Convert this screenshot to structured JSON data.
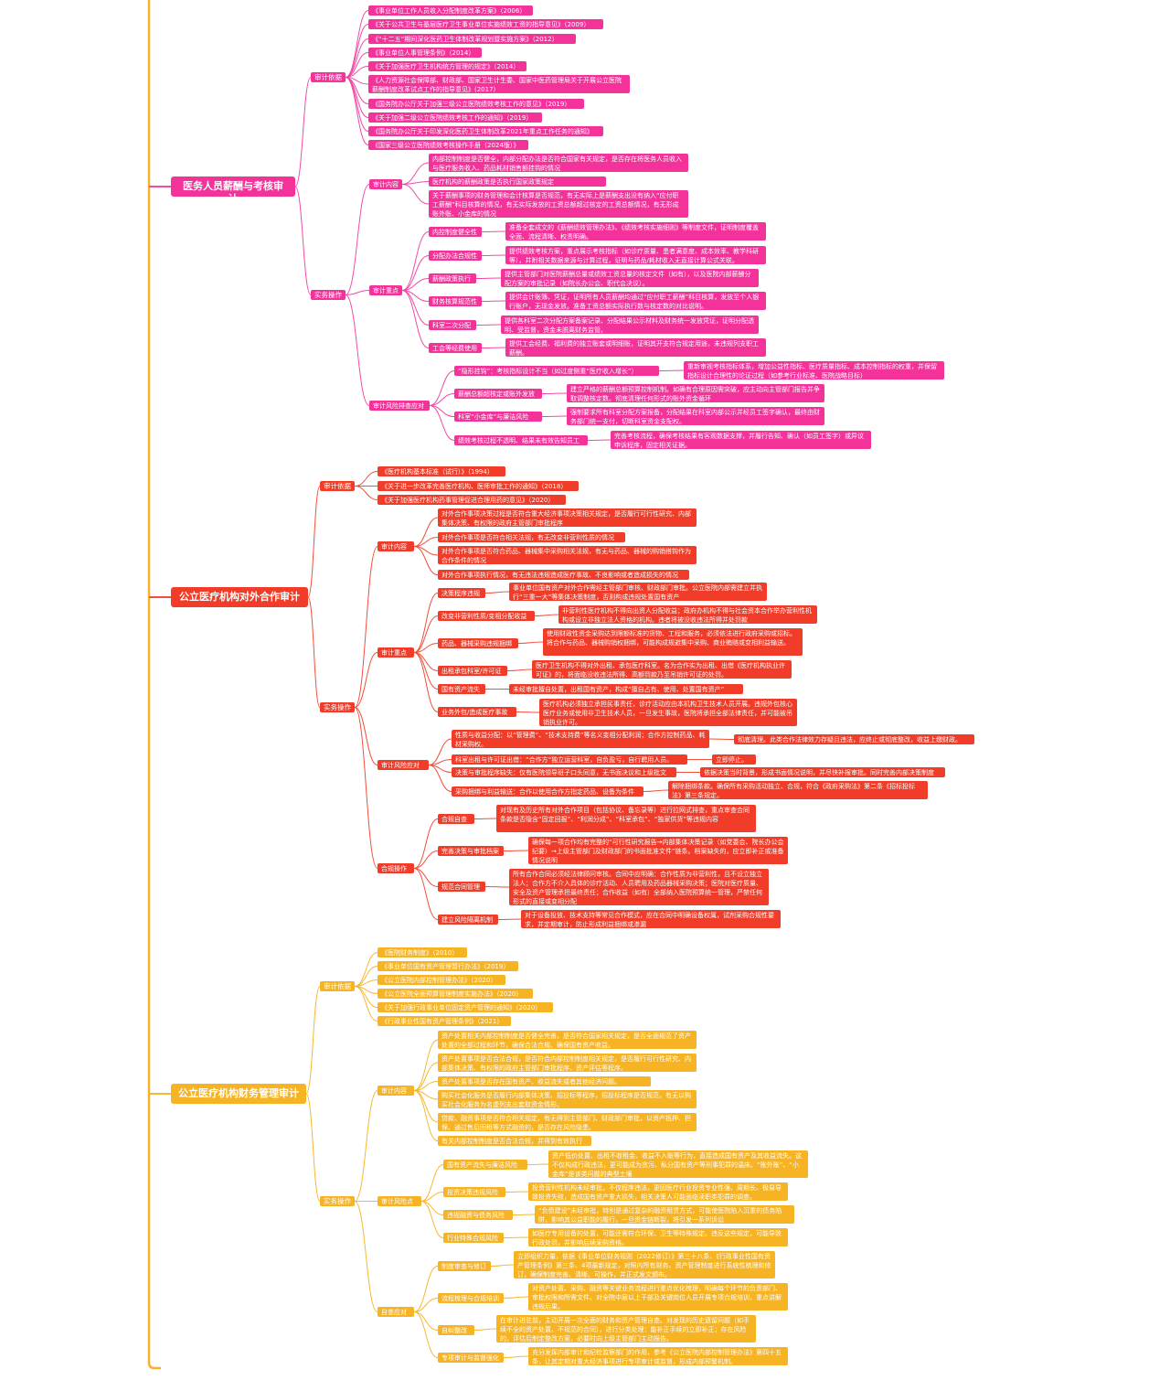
{
  "colors": {
    "pink": "#f4339a",
    "pink_line": "#f24aa6",
    "red": "#f03c28",
    "red_line": "#f24e3a",
    "orange": "#f6b324",
    "orange_line": "#f7b730",
    "trunk": "#f9b02d"
  },
  "branches": [
    {
      "title": "医务人员薪酬与考核审计",
      "children": [
        {
          "label": "审计依据",
          "children": [
            {
              "label": "《事业单位工作人员收入分配制度改革方案》（2006）"
            },
            {
              "label": "《关于公共卫生与基层医疗卫生事业单位实施绩效工资的指导意见》（2009）"
            },
            {
              "label": "《“十二五”期间深化医药卫生体制改革规划暨实施方案》（2012）"
            },
            {
              "label": "《事业单位人事管理条例》（2014）"
            },
            {
              "label": "《关于加强医疗卫生机构统方管理的规定》（2014）"
            },
            {
              "label": "《人力资源社会保障部、财政部、国家卫生计生委、国家中医药管理局关于开展公立医院薪酬制度改革试点工作的指导意见》(2017)"
            },
            {
              "label": "《国务院办公厅关于加强三级公立医院绩效考核工作的意见》（2019）"
            },
            {
              "label": "《关于加强二级公立医院绩效考核工作的通知》（2019）"
            },
            {
              "label": "《国务院办公厅关于印发深化医药卫生体制改革2021年重点工作任务的通知》"
            },
            {
              "label": "《国家三级公立医院绩效考核操作手册（2024版）》"
            }
          ]
        },
        {
          "label": "实务操作",
          "children": [
            {
              "label": "审计内容",
              "children": [
                {
                  "label": "内部控制制度是否健全，内部分配办法是否符合国家有关规定，是否存在将医务人员收入与医疗服务收入、药品耗材销售额挂钩的情况"
                },
                {
                  "label": "医疗机构的薪酬政策是否执行国家政策规定"
                },
                {
                  "label": "关于薪酬事项的财务管理和会计核算是否规范，有无实际上是薪酬支出没有纳入“应付职工薪酬”科目核算的情况，有无实际发放的工资总额超过核定的工资总额情况，有无形成账外账、小金库的情况"
                }
              ]
            },
            {
              "label": "审计重点",
              "children": [
                {
                  "label": "内控制度健全性",
                  "children": [
                    {
                      "label": "准备全套成文的《薪酬绩效管理办法》、《绩效考核实施细则》等制度文件，证明制度覆盖全面、流程清晰、权责明确。"
                    }
                  ]
                },
                {
                  "label": "分配办法合规性",
                  "children": [
                    {
                      "label": "提供绩效考核方案，重点展示考核指标（如诊疗质量、患者满意度、成本效率、教学科研等），并附相关数据来源与计算过程，证明与药品/耗材收入无直接计算公式关联。"
                    }
                  ]
                },
                {
                  "label": "薪酬政策执行",
                  "children": [
                    {
                      "label": "提供主管部门对医院薪酬总量或绩效工资总量的核定文件（如有），以及医院内部薪酬分配方案的审批记录（如院长办公会、职代会决议）。"
                    }
                  ]
                },
                {
                  "label": "财务核算规范性",
                  "children": [
                    {
                      "label": "提供会计账簿、凭证，证明所有人员薪酬均通过“应付职工薪酬”科目核算，发放至个人银行账户，无现金发放。准备工资总额实际执行数与核定数的对比说明。"
                    }
                  ]
                },
                {
                  "label": "科室二次分配",
                  "children": [
                    {
                      "label": "提供各科室二次分配方案备案记录、分配结果公示材料及财务统一发放凭证，证明分配透明、受监督，资金未脱离财务监管。"
                    }
                  ]
                },
                {
                  "label": "工会等经费使用",
                  "children": [
                    {
                      "label": "提供工会经费、福利费的独立账套或明细账，证明其开支符合规定用途，未违规列支职工薪酬。"
                    }
                  ]
                }
              ]
            },
            {
              "label": "审计风险排查应对",
              "children": [
                {
                  "label": "“隐形挂钩”：考核指标设计不当（如过度侧重“医疗收入增长”）",
                  "children": [
                    {
                      "label": "重新审视考核指标体系，增加公益性指标、医疗质量指标、成本控制指标的权重，并保留指标设计合理性的论证过程（如参考行业标准、医院战略目标）"
                    }
                  ]
                },
                {
                  "label": "薪酬总额超核定或账外发放",
                  "children": [
                    {
                      "label": "建立严格的薪酬总额预算控制机制。如确有合理原因需突破，应主动向主管部门报告并争取调整核定数。彻底清理任何形式的账外资金循环"
                    }
                  ]
                },
                {
                  "label": "科室“小金库”与廉洁风险",
                  "children": [
                    {
                      "label": "强制要求所有科室分配方案报备，分配结果在科室内部公示并经员工签字确认，最终由财务部门统一支付，切断科室资金支配权。"
                    }
                  ]
                },
                {
                  "label": "绩效考核过程不透明、结果未有效告知员工",
                  "children": [
                    {
                      "label": "完善考核流程，确保考核结果有客观数据支撑，并履行告知、确认（如员工签字）或异议申诉程序，固定相关证据。"
                    }
                  ]
                }
              ]
            }
          ]
        }
      ]
    },
    {
      "title": "公立医疗机构对外合作审计",
      "children": [
        {
          "label": "审计依据",
          "children": [
            {
              "label": "《医疗机构基本标准（试行）》（1994）"
            },
            {
              "label": "《关于进一步改革完善医疗机构、医师审批工作的通知》（2018）"
            },
            {
              "label": "《关于加强医疗机构药事管理促进合理用药的意见》（2020）"
            }
          ]
        },
        {
          "label": "实务操作",
          "children": [
            {
              "label": "审计内容",
              "children": [
                {
                  "label": "对外合作事项决策过程是否符合重大经济事项决策相关规定，是否履行可行性研究、内部集体决策、有权限的政府主管部门审批程序"
                },
                {
                  "label": "对外合作事项是否符合相关法规，有无改变非营利性质的情况"
                },
                {
                  "label": "对外合作事项是否符合药品、器械集中采购相关法规，有无与药品、器械的购销搭钩作为合作条件的情况"
                },
                {
                  "label": "对外合作事项执行情况，有无违法违规造成医疗事故、不良影响或者造成损失的情况"
                }
              ]
            },
            {
              "label": "审计重点",
              "children": [
                {
                  "label": "决策程序违规",
                  "children": [
                    {
                      "label": "事业单位国有资产对外合作需经主管部门审核、财政部门审批。公立医院内部需建立并执行“三重一大”等集体决策制度，否则构成违规处置国有资产"
                    }
                  ]
                },
                {
                  "label": "改变非营利性质/变相分配收益",
                  "children": [
                    {
                      "label": "非营利性医疗机构不得向出资人分配收益；政府办机构不得与社会资本合作举办营利性机构或设立非独立法人资格的机构。违者将被没收违法所得并处罚款"
                    }
                  ]
                },
                {
                  "label": "药品、器械采购违规捆绑",
                  "children": [
                    {
                      "label": "使用财政性资金采购达到限额标准的货物、工程和服务，必须依法进行政府采购或招标。将合作与药品、器械购销权捆绑，可能构成规避集中采购、商业贿赂或变相利益输送。"
                    }
                  ]
                },
                {
                  "label": "出租承包科室/许可证",
                  "children": [
                    {
                      "label": "医疗卫生机构不得对外出租、承包医疗科室。名为合作实为出租、出借《医疗机构执业许可证》的，将面临没收违法所得、高额罚款乃至吊销许可证的处罚。"
                    }
                  ]
                },
                {
                  "label": "国有资产流失",
                  "children": [
                    {
                      "label": "未经审批擅自处置，出租国有资产，构成“擅自占有、使用、处置国有资产”"
                    }
                  ]
                },
                {
                  "label": "业务外包/造成医疗事故",
                  "children": [
                    {
                      "label": "医疗机构必须独立承担民事责任，诊疗活动应由本机构卫生技术人员开展。违规外包核心医疗业务或使用非卫生技术人员，一旦发生事故，医院将承担全部法律责任，并可能被吊销执业许可。"
                    }
                  ]
                }
              ]
            },
            {
              "label": "审计风险应对",
              "children": [
                {
                  "label": "性质与收益分配：以“管理费”、“技术支持费”等名义变相分配利润；合作方控制药品、耗材采购权。",
                  "children": [
                    {
                      "label": "彻底清理。此类合作法律效力存疑且违法，应终止或彻底整改，收益上缴财政。"
                    }
                  ]
                },
                {
                  "label": "科室出租与许可证出借：“合作方”独立运营科室，自负盈亏，自行聘用人员。",
                  "children": [
                    {
                      "label": "立即停止。"
                    }
                  ]
                },
                {
                  "label": "决策与审批程序缺失：仅有医院领导班子口头同意，无书面决议和上级批文",
                  "children": [
                    {
                      "label": "依据决策当时背景，形成书面情况说明，并尽快补报审批。同时完善内部决策制度"
                    }
                  ]
                },
                {
                  "label": "采购捆绑与利益输送：合作以使用合作方指定药品、设备为条件",
                  "children": [
                    {
                      "label": "解除捆绑条款。确保所有采购活动独立、合规，符合《政府采购法》第二条《招标投标法》第三条规定。"
                    }
                  ]
                }
              ]
            },
            {
              "label": "合规操作",
              "children": [
                {
                  "label": "合规自查",
                  "children": [
                    {
                      "label": "对现有及历史所有对外合作项目（包括协议、备忘录等）进行拉网式排查，重点审查合同条款是否隐含“固定回报”、“利润分成”、“科室承包”、“独家供货”等违规内容"
                    }
                  ]
                },
                {
                  "label": "完善决策与审批档案",
                  "children": [
                    {
                      "label": "确保每一项合作均有完整的“可行性研究报告→内部集体决策记录（如党委会、院长办公会纪要）→上级主管部门及财政部门的书面批准文件”链条。档案缺失的，应立即补正或准备情况说明"
                    }
                  ]
                },
                {
                  "label": "规范合同管理",
                  "children": [
                    {
                      "label": "所有合作合同必须经法律顾问审核。合同中应明确：合作性质为非营利性，且不设立独立法人；合作方不介入具体的诊疗活动、人员聘用及药品器械采购决策；医院对医疗质量、安全及资产管理承担最终责任；合作收益（如有）全部纳入医院预算统一管理，严禁任何形式的直接或变相分配"
                    }
                  ]
                },
                {
                  "label": "建立风险隔离机制",
                  "children": [
                    {
                      "label": "对于设备投放、技术支持等常见合作模式，应在合同中明确设备权属，试剂采购合规性要求，并定期审计，防止形成利益捆绑或渗漏"
                    }
                  ]
                }
              ]
            }
          ]
        }
      ]
    },
    {
      "title": "公立医疗机构财务管理审计",
      "children": [
        {
          "label": "审计依据",
          "children": [
            {
              "label": "《医院财务制度》（2010）"
            },
            {
              "label": "《事业单位国有资产管理暂行办法》（2019）"
            },
            {
              "label": "《公立医院内部控制管理办法》（2020）"
            },
            {
              "label": "《公立医院全面预算管理制度实施办法》（2020）"
            },
            {
              "label": "《关于加强行政事业单位固定资产管理的通知》（2020）"
            },
            {
              "label": "《行政事业性国有资产管理条例》（2021）"
            }
          ]
        },
        {
          "label": "实务操作",
          "children": [
            {
              "label": "审计内容",
              "children": [
                {
                  "label": "资产处置相关内部控制制度是否健全完善，是否符合国家相关规定，是否全面规范了资产处置的全部过程和环节，确保合法合规、确保国有资产收益。"
                },
                {
                  "label": "资产处置事项是否合法合规，是否符合内部控制制度相关规定，是否履行可行性研究、内部集体决策、有权限的政府主管部门审批程序、资产评估等程序。"
                },
                {
                  "label": "资产处置事项是否存在国有资产、收益流失或者其他经济问题。"
                },
                {
                  "label": "购买社会化服务是否履行内部集体决策、招投标等程序，招投标程序是否规范，有无以购买社会化服务为名虚列支出套取资金情形。"
                },
                {
                  "label": "贷款、融资事项是否符合相关规定，有无得到主管部门、财政部门审批，以资产抵押、担保、通过售后回租等方式融资的，是否存在风险隐患。"
                },
                {
                  "label": "有关内部控制制度是否合法合规，并得到有效执行"
                }
              ]
            },
            {
              "label": "审计风险点",
              "children": [
                {
                  "label": "国有资产流失与廉洁风险",
                  "children": [
                    {
                      "label": "资产低价处置、出租不收租金、收益不入账等行为，直接造成国有资产及其收益流失。这不仅构成行政违法，更可能成为贪污、私分国有资产等刑事犯罪的温床。“账外账”、“小金库”是该类问题的典型土壤"
                    }
                  ]
                },
                {
                  "label": "投资决策违规风险",
                  "children": [
                    {
                      "label": "投资营利性机构未经审批，不仅程序违法，更因医疗行业投资专业性强、周期长、极易导致投资失败，造成国有资产重大损失，相关决策人可能面临渎职类犯罪的调查。"
                    }
                  ]
                },
                {
                  "label": "违规融资与债务风险",
                  "children": [
                    {
                      "label": "“负债建设”未经审批，特别是通过复杂的融资租赁方式，可能使医院陷入沉重的债务陷阱，影响其公益职能的履行，一旦资金链断裂，将引发一系列诉讼"
                    }
                  ]
                },
                {
                  "label": "行业特殊合规风险",
                  "children": [
                    {
                      "label": "如医疗专用设备的处置，可能还需符合环保、卫生等特殊规定。违反这些规定，可能导致行政处罚，并影响后续采购资格。"
                    }
                  ]
                }
              ]
            },
            {
              "label": "自查应对",
              "children": [
                {
                  "label": "制度审查与修订",
                  "children": [
                    {
                      "label": "立即组织力量，依据《事业单位财务规则（2022修订）》第三十八条、《行政事业性国有资产管理条例》第三条、4项最新规定，对照内所有财务、资产管理制度进行系统性梳理和修订，确保制度完善、清晰、可操作，并正式发文颁布。"
                    }
                  ]
                },
                {
                  "label": "流程梳理与合规培训",
                  "children": [
                    {
                      "label": "对资产处置、采购、融资等关键业务流程进行重点优化梳理，明确每个环节的负责部门、审批权限和所需文件。对全院中层以上干部及关键岗位人员开展专项合规培训，重点讲解违规后果。"
                    }
                  ]
                },
                {
                  "label": "自纠整改",
                  "children": [
                    {
                      "label": "在审计进驻前，主动开展一次全面的财务和资产管理自查。对发现的历史遗留问题（如手续不全的资产处置、不规范的合同），进行分类处理：能补正手续的立即补正；存在风险的，评估后制定整改方案，必要时向上级主管部门主动报告。"
                    }
                  ]
                },
                {
                  "label": "专项审计与监督强化",
                  "children": [
                    {
                      "label": "充分发挥内部审计和纪检监察部门的作用，参考《公立医院内部控制管理办法》第四十五条，让其定期对重大经济事项进行专项审计或监督，形成内部预警机制。"
                    }
                  ]
                }
              ]
            }
          ]
        }
      ]
    }
  ]
}
